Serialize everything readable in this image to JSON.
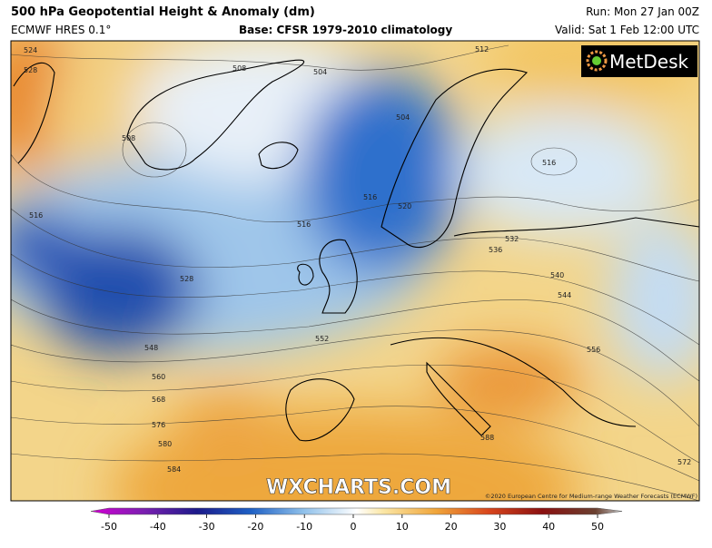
{
  "header": {
    "title": "500 hPa Geopotential Height & Anomaly (dm)",
    "model": "ECMWF HRES 0.1°",
    "base": "Base: CFSR 1979-2010 climatology",
    "run": "Run: Mon 27 Jan 00Z",
    "valid": "Valid: Sat 1 Feb 12:00 UTC"
  },
  "logo": "MetDesk",
  "watermark": "WXCHARTS.COM",
  "copyright": "©2020 European Centre for Medium-range Weather Forecasts (ECMWF)",
  "contour_labels": [
    524,
    528,
    508,
    504,
    512,
    508,
    504,
    516,
    516,
    520,
    516,
    516,
    532,
    536,
    540,
    544,
    528,
    548,
    552,
    556,
    560,
    568,
    576,
    580,
    584,
    588,
    572
  ],
  "colorbar": {
    "range": [
      -50,
      50
    ],
    "ticks": [
      -50,
      -40,
      -30,
      -20,
      -10,
      0,
      10,
      20,
      30,
      40,
      50
    ]
  }
}
